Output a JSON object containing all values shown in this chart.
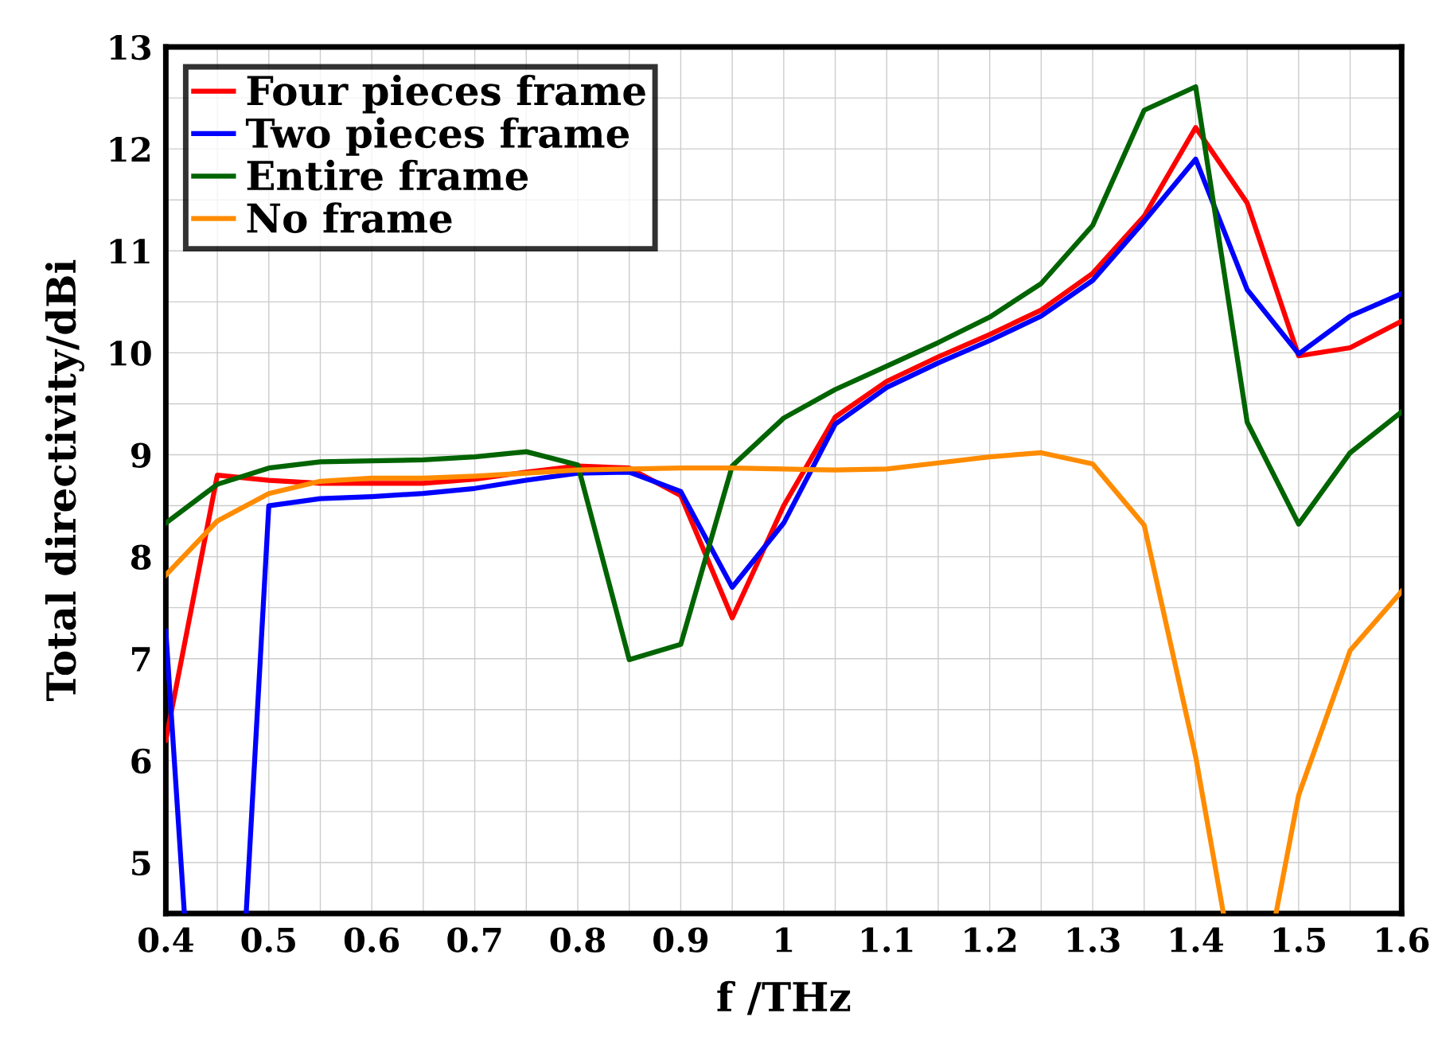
{
  "chart_data": {
    "type": "line",
    "xlabel": "f /THz",
    "ylabel": "Total directivity/dBi",
    "x": [
      0.4,
      0.45,
      0.5,
      0.55,
      0.6,
      0.65,
      0.7,
      0.75,
      0.8,
      0.85,
      0.9,
      0.95,
      1.0,
      1.05,
      1.1,
      1.15,
      1.2,
      1.25,
      1.3,
      1.35,
      1.4,
      1.45,
      1.5,
      1.55,
      1.6
    ],
    "series": [
      {
        "name": "Four pieces frame",
        "color": "#ff0000",
        "values": [
          6.2,
          8.8,
          8.75,
          8.72,
          8.72,
          8.72,
          8.76,
          8.83,
          8.89,
          8.87,
          8.6,
          7.4,
          8.5,
          9.37,
          9.72,
          9.96,
          10.18,
          10.42,
          10.78,
          11.34,
          12.21,
          11.47,
          9.97,
          10.05,
          10.31
        ]
      },
      {
        "name": "Two pieces frame",
        "color": "#0000ff",
        "x": [
          0.4,
          0.418,
          0.45,
          0.478,
          0.5,
          0.55,
          0.6,
          0.65,
          0.7,
          0.75,
          0.8,
          0.85,
          0.9,
          0.95,
          1.0,
          1.05,
          1.1,
          1.15,
          1.2,
          1.25,
          1.3,
          1.35,
          1.4,
          1.45,
          1.5,
          1.55,
          1.6
        ],
        "values": [
          7.27,
          4.5,
          null,
          4.5,
          8.5,
          8.57,
          8.59,
          8.62,
          8.67,
          8.75,
          8.82,
          8.83,
          8.64,
          7.7,
          8.33,
          9.3,
          9.66,
          9.9,
          10.12,
          10.36,
          10.71,
          11.29,
          11.9,
          10.62,
          9.99,
          10.36,
          10.58
        ]
      },
      {
        "name": "Entire frame",
        "color": "#006400",
        "values": [
          8.33,
          8.71,
          8.87,
          8.93,
          8.94,
          8.95,
          8.98,
          9.03,
          8.9,
          6.99,
          7.14,
          8.89,
          9.36,
          9.64,
          9.87,
          10.1,
          10.35,
          10.68,
          11.25,
          12.38,
          12.61,
          9.32,
          8.32,
          9.02,
          9.42
        ]
      },
      {
        "name": "No frame",
        "color": "#ff8c00",
        "x": [
          0.4,
          0.45,
          0.5,
          0.55,
          0.6,
          0.65,
          0.7,
          0.75,
          0.8,
          0.85,
          0.9,
          0.95,
          1.0,
          1.05,
          1.1,
          1.15,
          1.2,
          1.25,
          1.3,
          1.35,
          1.4,
          1.427,
          1.45,
          1.478,
          1.5,
          1.55,
          1.6
        ],
        "values": [
          7.82,
          8.35,
          8.62,
          8.74,
          8.77,
          8.77,
          8.79,
          8.82,
          8.85,
          8.86,
          8.87,
          8.87,
          8.86,
          8.85,
          8.86,
          8.92,
          8.98,
          9.02,
          8.91,
          8.31,
          6.04,
          4.5,
          null,
          4.5,
          5.66,
          7.08,
          7.66
        ]
      }
    ],
    "xlim": [
      0.4,
      1.6
    ],
    "ylim": [
      4.5,
      13
    ],
    "xticks": [
      0.4,
      {
        "value": 0.45,
        "label": null
      },
      0.5,
      {
        "value": 0.55,
        "label": null
      },
      0.6,
      {
        "value": 0.65,
        "label": null
      },
      0.7,
      {
        "value": 0.75,
        "label": null
      },
      0.8,
      {
        "value": 0.85,
        "label": null
      },
      0.9,
      {
        "value": 0.95,
        "label": null
      },
      {
        "value": 1.0,
        "label": "1"
      },
      {
        "value": 1.05,
        "label": null
      },
      1.1,
      {
        "value": 1.15,
        "label": null
      },
      1.2,
      {
        "value": 1.25,
        "label": null
      },
      1.3,
      {
        "value": 1.35,
        "label": null
      },
      1.4,
      {
        "value": 1.45,
        "label": null
      },
      1.5,
      {
        "value": 1.55,
        "label": null
      },
      1.6
    ],
    "yticks": [
      {
        "value": 4.5,
        "label": null
      },
      5,
      {
        "value": 5.5,
        "label": null
      },
      6,
      {
        "value": 6.5,
        "label": null
      },
      7,
      {
        "value": 7.5,
        "label": null
      },
      8,
      {
        "value": 8.5,
        "label": null
      },
      9,
      {
        "value": 9.5,
        "label": null
      },
      10,
      {
        "value": 10.5,
        "label": null
      },
      11,
      {
        "value": 11.5,
        "label": null
      },
      12,
      {
        "value": 12.5,
        "label": null
      },
      13
    ],
    "grid": true,
    "legend": "top left",
    "marker": "none",
    "line_style": "solid"
  }
}
